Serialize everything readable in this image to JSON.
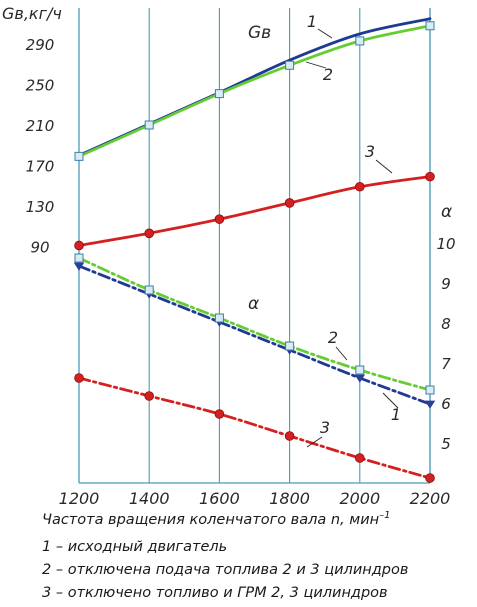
{
  "chart_data": {
    "type": "line",
    "x": [
      1200,
      1400,
      1600,
      1800,
      2000,
      2200
    ],
    "xlim": [
      1200,
      2200
    ],
    "x_ticks": [
      "1200",
      "1400",
      "1600",
      "1800",
      "2000",
      "2200"
    ],
    "x_axis_title": "Частота вращения коленчатого вала n, мин",
    "x_axis_unit_sup": "–1",
    "left_axis": {
      "label": "Gв,кг/ч",
      "ticks": [
        "290",
        "250",
        "210",
        "170",
        "130",
        "90"
      ],
      "tick_values": [
        290,
        250,
        210,
        170,
        130,
        90
      ],
      "ylim": [
        90,
        320
      ]
    },
    "right_axis": {
      "label": "α",
      "ticks": [
        "10",
        "9",
        "8",
        "7",
        "6",
        "5"
      ],
      "tick_values": [
        10,
        9,
        8,
        7,
        6,
        5
      ],
      "ylim": [
        4.0,
        10.0
      ]
    },
    "groups": [
      {
        "label": "Gв",
        "axis": "left",
        "series": [
          {
            "id": "1",
            "color": "#1f3a93",
            "marker": "none",
            "dash": "solid",
            "values": [
              181,
              212,
              243,
              275,
              301,
              316
            ]
          },
          {
            "id": "2",
            "color": "#66cc33",
            "marker": "square",
            "dash": "solid",
            "values": [
              180,
              211,
              242,
              270,
              294,
              309
            ]
          },
          {
            "id": "3",
            "color": "#d42020",
            "marker": "circle",
            "dash": "solid",
            "values": [
              92,
              104,
              118,
              134,
              150,
              160
            ]
          }
        ]
      },
      {
        "label": "α",
        "axis": "right",
        "series": [
          {
            "id": "1",
            "color": "#1f3a93",
            "marker": "triangle",
            "dash": "dashdot",
            "values": [
              9.45,
              8.75,
              8.05,
              7.35,
              6.65,
              6.0
            ]
          },
          {
            "id": "2",
            "color": "#66cc33",
            "marker": "square",
            "dash": "dashdot",
            "values": [
              9.65,
              8.85,
              8.15,
              7.45,
              6.85,
              6.35
            ]
          },
          {
            "id": "3",
            "color": "#d42020",
            "marker": "circle",
            "dash": "dashdot",
            "values": [
              6.65,
              6.2,
              5.75,
              5.2,
              4.65,
              4.15
            ]
          }
        ]
      }
    ],
    "series_labels": [
      {
        "text": "1"
      },
      {
        "text": "2"
      },
      {
        "text": "3"
      },
      {
        "text": "2"
      },
      {
        "text": "1"
      },
      {
        "text": "3"
      }
    ],
    "legend": [
      "1 – исходный двигатель",
      "2 – отключена подача топлива 2 и 3 цилиндров",
      "3 – отключено топливо и ГРМ 2, 3 цилиндров"
    ]
  }
}
